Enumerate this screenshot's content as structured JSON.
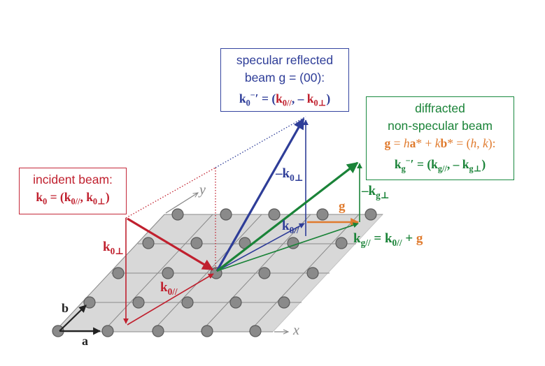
{
  "axes": {
    "x": "x",
    "y": "y",
    "a": "a",
    "b": "b"
  },
  "specular_box": {
    "line1": "specular reflected",
    "line2": "beam g = (00):",
    "k": "k",
    "sub0": "0",
    "sup_minus": "−",
    "prime_eq": "′ = (",
    "k_par": "k",
    "sub_par": "0//",
    "comma": ", – ",
    "k_perp": "k",
    "sub_perp": "0⊥",
    "close": ")"
  },
  "incident_box": {
    "line1": "incident beam:",
    "k": "k",
    "sub0": "0",
    "eq": " = (",
    "k_par": "k",
    "sub_par": "0//",
    "comma": ", ",
    "k_perp": "k",
    "sub_perp": "0⊥",
    "close": ")"
  },
  "diffracted_box": {
    "line1": "diffracted",
    "line2": "non-specular beam",
    "g": "g",
    "eq1": " = ",
    "h": "h",
    "a": "a",
    "star_plus": "* + ",
    "kk": "k",
    "b": "b",
    "star_eq": "* = (",
    "h2": "h",
    "comma_k": ", ",
    "k2": "k",
    "close1": "):",
    "k": "k",
    "subg": "g",
    "sup_minus": "−",
    "prime_eq": "′ = (",
    "k_par": "k",
    "sub_par": "g//",
    "comma": ", – ",
    "k_perp": "k",
    "sub_perp": "g⊥",
    "close": ")"
  },
  "labels": {
    "k0perp_left": {
      "k": "k",
      "sub": "0⊥"
    },
    "k0par": {
      "k": "k",
      "sub": "0//"
    },
    "minus_k0perp": {
      "prefix": "–",
      "k": "k",
      "sub": "0⊥"
    },
    "k0par_right": {
      "k": "k",
      "sub": "0//"
    },
    "minus_kgperp": {
      "prefix": "–",
      "k": "k",
      "sub": "g⊥"
    },
    "g": "g",
    "kg_eq": {
      "k": "k",
      "sub": "g//",
      "eq": " = ",
      "k2": "k",
      "sub2": "0//",
      "plus": " + ",
      "g": "g"
    }
  },
  "colors": {
    "blue": "#2e3d98",
    "red": "#c0202e",
    "green": "#1a8338",
    "orange": "#e07b2e",
    "plane": "#d9d9d9",
    "atom": "#888888"
  }
}
